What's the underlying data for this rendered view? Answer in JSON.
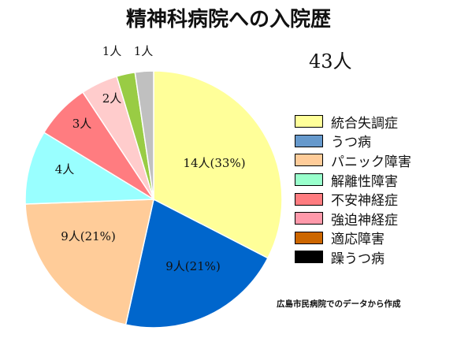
{
  "title": "精神科病院への入院歴",
  "total_label": "43人",
  "source_note": "広島市民病院でのデータから作成",
  "chart_data": {
    "type": "pie",
    "title": "精神科病院への入院歴",
    "total": 43,
    "legend_position": "right",
    "slices": [
      {
        "name": "統合失調症",
        "value": 14,
        "label": "14人(33%)",
        "color": "#ffff99"
      },
      {
        "name": "うつ病",
        "value": 9,
        "label": "9人(21%)",
        "color": "#0066cc"
      },
      {
        "name": "パニック障害",
        "value": 9,
        "label": "9人(21%)",
        "color": "#ffcc99"
      },
      {
        "name": "解離性障害",
        "value": 4,
        "label": "4人",
        "color": "#99ffff"
      },
      {
        "name": "不安神経症",
        "value": 3,
        "label": "3人",
        "color": "#ff7c80"
      },
      {
        "name": "強迫神経症",
        "value": 2,
        "label": "2人",
        "color": "#ffcccc"
      },
      {
        "name": "適応障害",
        "value": 1,
        "label": "1人",
        "color": "#99cc44"
      },
      {
        "name": "躁うつ病",
        "value": 1,
        "label": "1人",
        "color": "#c0c0c0"
      }
    ],
    "legend": [
      {
        "label": "統合失調症",
        "color": "#ffff99"
      },
      {
        "label": "うつ病",
        "color": "#6699cc"
      },
      {
        "label": "パニック障害",
        "color": "#ffcc99"
      },
      {
        "label": "解離性障害",
        "color": "#99ffcc"
      },
      {
        "label": "不安神経症",
        "color": "#ff7c80"
      },
      {
        "label": "強迫神経症",
        "color": "#ff99aa"
      },
      {
        "label": "適応障害",
        "color": "#cc6600"
      },
      {
        "label": "躁うつ病",
        "color": "#000000"
      }
    ]
  }
}
